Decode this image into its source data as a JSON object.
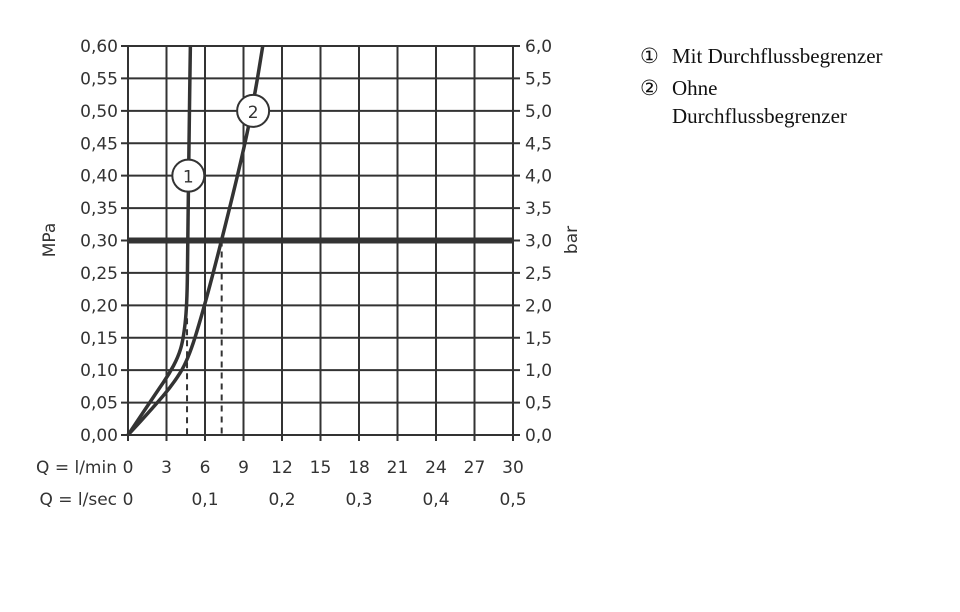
{
  "chart_data": {
    "type": "line",
    "ylabel_left": "MPa",
    "ylabel_right": "bar",
    "ylim_left": [
      0,
      0.6
    ],
    "ylim_right": [
      0,
      6.0
    ],
    "xlim": [
      0,
      30
    ],
    "grid": true,
    "yticks_left": [
      "0,00",
      "0,05",
      "0,10",
      "0,15",
      "0,20",
      "0,25",
      "0,30",
      "0,35",
      "0,40",
      "0,45",
      "0,50",
      "0,55",
      "0,60"
    ],
    "yticks_right": [
      "0,0",
      "0,5",
      "1,0",
      "1,5",
      "2,0",
      "2,5",
      "3,0",
      "3,5",
      "4,0",
      "4,5",
      "5,0",
      "5,5",
      "6,0"
    ],
    "xaxis1": {
      "label": "Q = l/min",
      "ticks": [
        "0",
        "3",
        "6",
        "9",
        "12",
        "15",
        "18",
        "21",
        "24",
        "27",
        "30"
      ]
    },
    "xaxis2": {
      "label": "Q = l/sec",
      "ticks": [
        "0",
        "0,1",
        "0,2",
        "0,3",
        "0,4",
        "0,5"
      ],
      "tick_positions_lmin": [
        0,
        6,
        12,
        18,
        24,
        30
      ]
    },
    "reference_line": {
      "y": 0.3,
      "style": "thick"
    },
    "series": [
      {
        "label": "1",
        "x": [
          0,
          2.3,
          3.2,
          3.9,
          4.3,
          4.6,
          4.66,
          4.75,
          4.86
        ],
        "y": [
          0,
          0.068,
          0.094,
          0.12,
          0.146,
          0.198,
          0.3,
          0.45,
          0.6
        ],
        "marker_at": [
          4.7,
          0.4
        ],
        "dashed_drop_x": 4.6,
        "dashed_from_y": 0.18
      },
      {
        "label": "2",
        "x": [
          0,
          1.94,
          3.5,
          4.66,
          5.8,
          7.3,
          9.05,
          9.9,
          10.5
        ],
        "y": [
          0,
          0.042,
          0.078,
          0.115,
          0.187,
          0.3,
          0.442,
          0.527,
          0.6
        ],
        "marker_at": [
          9.75,
          0.5
        ],
        "dashed_drop_x": 7.3,
        "dashed_from_y": 0.3
      }
    ],
    "legend": [
      {
        "num": "①",
        "text": "Mit Durchflussbegrenzer"
      },
      {
        "num": "②",
        "text": "Ohne Durchflussbegrenzer"
      }
    ],
    "colors": {
      "line": "#333333",
      "grid": "#333333"
    }
  }
}
